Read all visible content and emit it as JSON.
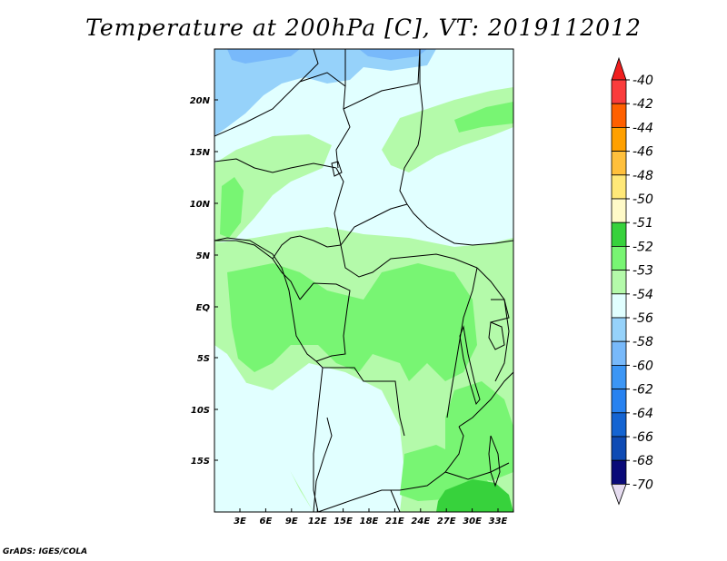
{
  "title": "Temperature at 200hPa [C], VT: 2019112012",
  "credit": "GrADS: IGES/COLA",
  "map": {
    "lat_labels": [
      "20N",
      "15N",
      "10N",
      "5N",
      "EQ",
      "5S",
      "10S",
      "15S"
    ],
    "lon_labels": [
      "3E",
      "6E",
      "9E",
      "12E",
      "15E",
      "18E",
      "21E",
      "24E",
      "27E",
      "30E",
      "33E"
    ],
    "region_colors": {
      "cold_north": "#96d2fa",
      "colder_north": "#78b9fa",
      "mid": "#e1ffff",
      "warm": "#b4faaa",
      "warmer": "#78f573",
      "warmest": "#37d23c"
    }
  },
  "colorbar": {
    "labels": [
      "-40",
      "-42",
      "-44",
      "-46",
      "-48",
      "-50",
      "-51",
      "-52",
      "-53",
      "-54",
      "-56",
      "-58",
      "-60",
      "-62",
      "-64",
      "-66",
      "-68",
      "-70"
    ],
    "colors": [
      "#f01e1e",
      "#fa3c3c",
      "#ff6000",
      "#ffa000",
      "#ffc03c",
      "#ffe878",
      "#fffac8",
      "#37d23c",
      "#78f573",
      "#b4faaa",
      "#e1ffff",
      "#96d2fa",
      "#78b9fa",
      "#3c96f5",
      "#2882f0",
      "#1464d2",
      "#0f4bb4",
      "#0a0a78",
      "#e6dcf0"
    ]
  }
}
